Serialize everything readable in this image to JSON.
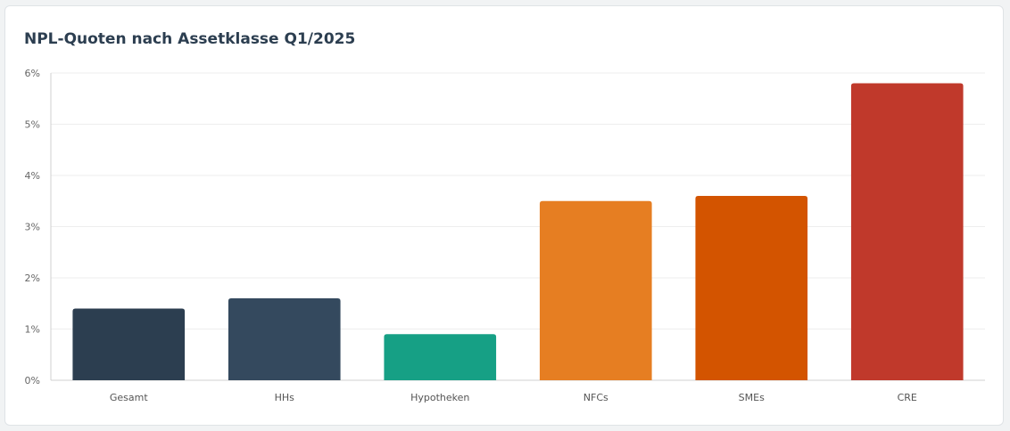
{
  "chart_data": {
    "type": "bar",
    "title": "NPL-Quoten nach Assetklasse Q1/2025",
    "categories": [
      "Gesamt",
      "HHs",
      "Hypotheken",
      "NFCs",
      "SMEs",
      "CRE"
    ],
    "values": [
      1.4,
      1.6,
      0.9,
      3.5,
      3.6,
      5.8
    ],
    "colors": [
      "#2c3e50",
      "#34495e",
      "#16a085",
      "#e67e22",
      "#d35400",
      "#c0392b"
    ],
    "yticks": [
      "0%",
      "1%",
      "2%",
      "3%",
      "4%",
      "5%",
      "6%"
    ],
    "ylim": [
      0,
      6
    ],
    "xlabel": "",
    "ylabel": "",
    "grid": true,
    "legend": "none"
  }
}
